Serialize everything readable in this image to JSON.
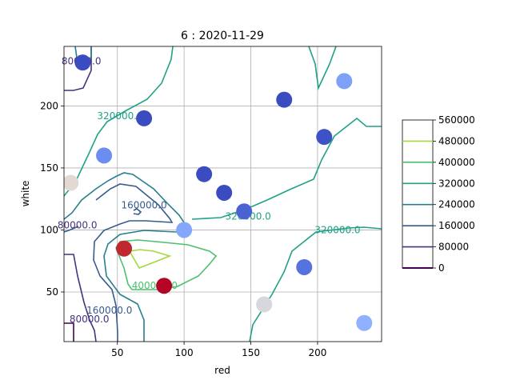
{
  "chart_data": {
    "type": "contour",
    "title": "6 : 2020-11-29",
    "xlabel": "red",
    "ylabel": "white",
    "xlim": [
      10,
      248
    ],
    "ylim": [
      10,
      248
    ],
    "grid": true,
    "xticks": [
      50,
      100,
      150,
      200
    ],
    "yticks": [
      50,
      100,
      150,
      200
    ],
    "colorbar": {
      "levels": [
        0,
        80000,
        160000,
        240000,
        320000,
        400000,
        480000,
        560000
      ],
      "labels": [
        "0",
        "80000",
        "160000",
        "240000",
        "320000",
        "400000",
        "480000",
        "560000"
      ],
      "colors": [
        "#440154",
        "#46327e",
        "#365c8d",
        "#277f8e",
        "#1fa187",
        "#4ac16d",
        "#a0da39",
        "#fde725"
      ]
    },
    "contour_labels": [
      {
        "text": "320000.0",
        "x": 52,
        "y": 192,
        "level": 320000
      },
      {
        "text": "160000.0",
        "x": 70,
        "y": 120,
        "level": 160000
      },
      {
        "text": "80000.0",
        "x": 20,
        "y": 104,
        "level": 80000
      },
      {
        "text": "320000.0",
        "x": 148,
        "y": 111,
        "level": 320000
      },
      {
        "text": "320000.0",
        "x": 215,
        "y": 100,
        "level": 320000
      },
      {
        "text": "80000.0",
        "x": 23,
        "y": 236,
        "level": 80000
      },
      {
        "text": "400000.0",
        "x": 78,
        "y": 55,
        "level": 400000
      },
      {
        "text": "160000.0",
        "x": 44,
        "y": 35,
        "level": 160000
      },
      {
        "text": "80000.0",
        "x": 29,
        "y": 28,
        "level": 80000
      }
    ],
    "scatter_points": [
      {
        "x": 24,
        "y": 235,
        "color": "#3b4cc0"
      },
      {
        "x": 70,
        "y": 190,
        "color": "#3b4cc0"
      },
      {
        "x": 175,
        "y": 205,
        "color": "#3b4cc0"
      },
      {
        "x": 220,
        "y": 220,
        "color": "#7da0f9"
      },
      {
        "x": 205,
        "y": 175,
        "color": "#3e51c5"
      },
      {
        "x": 40,
        "y": 160,
        "color": "#6b8df0"
      },
      {
        "x": 115,
        "y": 145,
        "color": "#3b4cc0"
      },
      {
        "x": 15,
        "y": 138,
        "color": "#e3d9d3"
      },
      {
        "x": 130,
        "y": 130,
        "color": "#3b4cc0"
      },
      {
        "x": 145,
        "y": 115,
        "color": "#4a63d3"
      },
      {
        "x": 100,
        "y": 100,
        "color": "#84a7fc"
      },
      {
        "x": 55,
        "y": 85,
        "color": "#c0282f"
      },
      {
        "x": 190,
        "y": 70,
        "color": "#5572df"
      },
      {
        "x": 85,
        "y": 55,
        "color": "#b40426"
      },
      {
        "x": 160,
        "y": 40,
        "color": "#d6d8dd"
      },
      {
        "x": 235,
        "y": 25,
        "color": "#8fb1fe"
      }
    ]
  }
}
